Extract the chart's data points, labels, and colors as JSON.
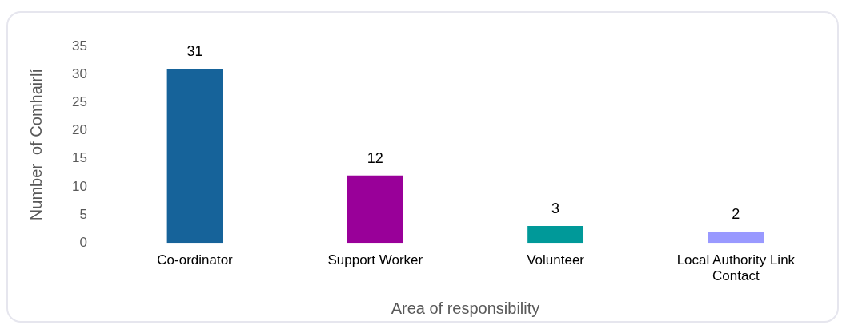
{
  "chart_data": {
    "type": "bar",
    "xlabel": "Area of responsibility",
    "ylabel": "Number  of Comhairlí",
    "categories": [
      "Co-ordinator",
      "Support Worker",
      "Volunteer",
      "Local Authority Link Contact"
    ],
    "values": [
      31,
      12,
      3,
      2
    ],
    "colors": [
      "#16639a",
      "#990099",
      "#009999",
      "#9999ff"
    ],
    "ylim": [
      0,
      35
    ],
    "yticks": [
      0,
      5,
      10,
      15,
      20,
      25,
      30,
      35
    ],
    "grid": false,
    "legend": false,
    "data_labels": true
  }
}
